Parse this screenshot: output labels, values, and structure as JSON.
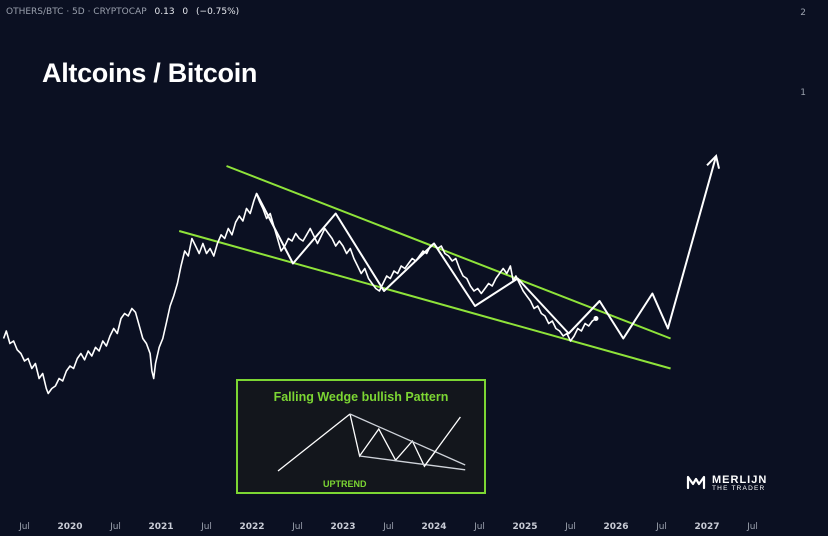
{
  "header": {
    "symbol": "OTHERS/BTC · 5D · CRYPTOCAP",
    "price": "0.13",
    "change": "0",
    "change_pct": "(−0.75%)"
  },
  "y_axis_labels": [
    "2",
    "1"
  ],
  "inset": {
    "title": "Falling Wedge bullish Pattern",
    "footer": "UPTREND"
  },
  "logo": {
    "name": "MERLIJN",
    "tagline": "THE TRADER"
  },
  "colors": {
    "background": "#0b1022",
    "price_line": "#ffffff",
    "wedge": "#8fe33a",
    "inset_border": "#7cd633"
  },
  "chart_data": {
    "type": "line",
    "title": "Altcoins / Bitcoin",
    "x_ticks": [
      "Jul",
      "2020",
      "Jul",
      "2021",
      "Jul",
      "2022",
      "Jul",
      "2023",
      "Jul",
      "2024",
      "Jul",
      "2025",
      "Jul",
      "2026",
      "Jul",
      "2027",
      "Jul"
    ],
    "x_tick_years": [
      2019.5,
      2020,
      2020.5,
      2021,
      2021.5,
      2022,
      2022.5,
      2023,
      2023.5,
      2024,
      2024.5,
      2025,
      2025.5,
      2026,
      2026.5,
      2027,
      2027.5
    ],
    "series": [
      {
        "kind": "price",
        "points": [
          [
            2019.27,
            0.62
          ],
          [
            2019.3,
            0.68
          ],
          [
            2019.34,
            0.58
          ],
          [
            2019.38,
            0.6
          ],
          [
            2019.42,
            0.53
          ],
          [
            2019.46,
            0.5
          ],
          [
            2019.5,
            0.44
          ],
          [
            2019.54,
            0.46
          ],
          [
            2019.58,
            0.38
          ],
          [
            2019.62,
            0.42
          ],
          [
            2019.66,
            0.3
          ],
          [
            2019.7,
            0.34
          ],
          [
            2019.74,
            0.22
          ],
          [
            2019.76,
            0.18
          ],
          [
            2019.8,
            0.22
          ],
          [
            2019.84,
            0.24
          ],
          [
            2019.88,
            0.3
          ],
          [
            2019.92,
            0.28
          ],
          [
            2019.96,
            0.36
          ],
          [
            2020.0,
            0.4
          ],
          [
            2020.04,
            0.38
          ],
          [
            2020.08,
            0.46
          ],
          [
            2020.12,
            0.5
          ],
          [
            2020.16,
            0.45
          ],
          [
            2020.2,
            0.52
          ],
          [
            2020.24,
            0.48
          ],
          [
            2020.28,
            0.55
          ],
          [
            2020.32,
            0.52
          ],
          [
            2020.36,
            0.6
          ],
          [
            2020.4,
            0.56
          ],
          [
            2020.44,
            0.64
          ],
          [
            2020.48,
            0.7
          ],
          [
            2020.52,
            0.66
          ],
          [
            2020.56,
            0.78
          ],
          [
            2020.6,
            0.82
          ],
          [
            2020.64,
            0.8
          ],
          [
            2020.68,
            0.86
          ],
          [
            2020.72,
            0.83
          ],
          [
            2020.75,
            0.75
          ],
          [
            2020.8,
            0.62
          ],
          [
            2020.84,
            0.58
          ],
          [
            2020.88,
            0.5
          ],
          [
            2020.9,
            0.36
          ],
          [
            2020.92,
            0.3
          ],
          [
            2020.94,
            0.42
          ],
          [
            2020.98,
            0.55
          ],
          [
            2021.02,
            0.62
          ],
          [
            2021.06,
            0.75
          ],
          [
            2021.1,
            0.88
          ],
          [
            2021.14,
            0.96
          ],
          [
            2021.18,
            1.06
          ],
          [
            2021.22,
            1.2
          ],
          [
            2021.26,
            1.32
          ],
          [
            2021.3,
            1.28
          ],
          [
            2021.34,
            1.42
          ],
          [
            2021.38,
            1.36
          ],
          [
            2021.42,
            1.3
          ],
          [
            2021.46,
            1.38
          ],
          [
            2021.5,
            1.3
          ],
          [
            2021.54,
            1.34
          ],
          [
            2021.58,
            1.28
          ],
          [
            2021.62,
            1.38
          ],
          [
            2021.66,
            1.45
          ],
          [
            2021.7,
            1.42
          ],
          [
            2021.74,
            1.5
          ],
          [
            2021.78,
            1.45
          ],
          [
            2021.82,
            1.55
          ],
          [
            2021.86,
            1.6
          ],
          [
            2021.9,
            1.56
          ],
          [
            2021.94,
            1.66
          ],
          [
            2021.98,
            1.62
          ],
          [
            2022.02,
            1.72
          ],
          [
            2022.05,
            1.78
          ],
          [
            2022.08,
            1.72
          ],
          [
            2022.12,
            1.66
          ],
          [
            2022.16,
            1.58
          ],
          [
            2022.2,
            1.62
          ],
          [
            2022.24,
            1.52
          ],
          [
            2022.28,
            1.42
          ],
          [
            2022.32,
            1.32
          ],
          [
            2022.36,
            1.36
          ],
          [
            2022.4,
            1.42
          ],
          [
            2022.44,
            1.4
          ],
          [
            2022.48,
            1.46
          ],
          [
            2022.52,
            1.42
          ],
          [
            2022.56,
            1.4
          ],
          [
            2022.6,
            1.45
          ],
          [
            2022.64,
            1.5
          ],
          [
            2022.68,
            1.44
          ],
          [
            2022.72,
            1.38
          ],
          [
            2022.76,
            1.44
          ],
          [
            2022.8,
            1.5
          ],
          [
            2022.84,
            1.46
          ],
          [
            2022.88,
            1.42
          ],
          [
            2022.92,
            1.36
          ],
          [
            2022.96,
            1.4
          ],
          [
            2023.0,
            1.36
          ],
          [
            2023.04,
            1.3
          ],
          [
            2023.08,
            1.34
          ],
          [
            2023.12,
            1.26
          ],
          [
            2023.16,
            1.2
          ],
          [
            2023.2,
            1.14
          ],
          [
            2023.24,
            1.18
          ],
          [
            2023.28,
            1.1
          ],
          [
            2023.32,
            1.06
          ],
          [
            2023.36,
            1.02
          ],
          [
            2023.4,
            1.0
          ],
          [
            2023.44,
            1.06
          ],
          [
            2023.48,
            1.12
          ],
          [
            2023.52,
            1.1
          ],
          [
            2023.56,
            1.16
          ],
          [
            2023.6,
            1.14
          ],
          [
            2023.64,
            1.2
          ],
          [
            2023.68,
            1.18
          ],
          [
            2023.72,
            1.22
          ],
          [
            2023.76,
            1.26
          ],
          [
            2023.8,
            1.24
          ],
          [
            2023.84,
            1.28
          ],
          [
            2023.88,
            1.32
          ],
          [
            2023.92,
            1.3
          ],
          [
            2023.96,
            1.36
          ],
          [
            2024.0,
            1.38
          ],
          [
            2024.04,
            1.34
          ],
          [
            2024.08,
            1.36
          ],
          [
            2024.12,
            1.3
          ],
          [
            2024.16,
            1.28
          ],
          [
            2024.2,
            1.24
          ],
          [
            2024.24,
            1.26
          ],
          [
            2024.28,
            1.18
          ],
          [
            2024.32,
            1.12
          ],
          [
            2024.36,
            1.1
          ],
          [
            2024.4,
            1.04
          ],
          [
            2024.44,
            1.0
          ],
          [
            2024.48,
            1.02
          ],
          [
            2024.52,
            0.98
          ],
          [
            2024.56,
            1.02
          ],
          [
            2024.6,
            1.06
          ],
          [
            2024.64,
            1.04
          ],
          [
            2024.68,
            1.1
          ],
          [
            2024.72,
            1.14
          ],
          [
            2024.76,
            1.18
          ],
          [
            2024.8,
            1.14
          ],
          [
            2024.84,
            1.2
          ],
          [
            2024.87,
            1.08
          ],
          [
            2024.9,
            1.12
          ],
          [
            2024.94,
            1.06
          ],
          [
            2024.98,
            1.0
          ],
          [
            2025.02,
            0.96
          ],
          [
            2025.06,
            0.92
          ],
          [
            2025.1,
            0.86
          ],
          [
            2025.14,
            0.88
          ],
          [
            2025.18,
            0.82
          ],
          [
            2025.22,
            0.8
          ],
          [
            2025.26,
            0.74
          ],
          [
            2025.3,
            0.76
          ],
          [
            2025.34,
            0.7
          ],
          [
            2025.38,
            0.68
          ],
          [
            2025.42,
            0.64
          ],
          [
            2025.46,
            0.66
          ],
          [
            2025.5,
            0.6
          ],
          [
            2025.54,
            0.64
          ],
          [
            2025.58,
            0.7
          ],
          [
            2025.62,
            0.68
          ],
          [
            2025.66,
            0.74
          ],
          [
            2025.7,
            0.72
          ],
          [
            2025.74,
            0.76
          ],
          [
            2025.78,
            0.78
          ]
        ]
      },
      {
        "kind": "projection",
        "points": [
          [
            2022.05,
            1.78
          ],
          [
            2022.45,
            1.22
          ],
          [
            2022.92,
            1.62
          ],
          [
            2023.45,
            1.0
          ],
          [
            2024.0,
            1.38
          ],
          [
            2024.45,
            0.88
          ],
          [
            2024.92,
            1.1
          ],
          [
            2025.48,
            0.66
          ],
          [
            2025.82,
            0.92
          ],
          [
            2026.08,
            0.62
          ],
          [
            2026.4,
            0.98
          ],
          [
            2026.57,
            0.7
          ],
          [
            2027.1,
            2.08
          ]
        ]
      }
    ],
    "wedge_lines": [
      [
        [
          2021.72,
          2.0
        ],
        [
          2026.6,
          0.62
        ]
      ],
      [
        [
          2021.2,
          1.48
        ],
        [
          2026.6,
          0.38
        ]
      ]
    ],
    "inset_sketch": {
      "uptrend": [
        [
          0,
          0
        ],
        [
          3,
          0.95
        ]
      ],
      "waves": [
        [
          3,
          0.95
        ],
        [
          3.4,
          0.25
        ],
        [
          4.2,
          0.7
        ],
        [
          4.9,
          0.18
        ],
        [
          5.6,
          0.5
        ],
        [
          6.1,
          0.08
        ],
        [
          6.6,
          0.35
        ]
      ],
      "upper_line": [
        [
          3,
          0.95
        ],
        [
          7.8,
          0.1
        ]
      ],
      "lower_line": [
        [
          3.4,
          0.25
        ],
        [
          7.8,
          0.02
        ]
      ],
      "breakout": [
        [
          6.1,
          0.08
        ],
        [
          7.6,
          0.9
        ]
      ]
    }
  }
}
